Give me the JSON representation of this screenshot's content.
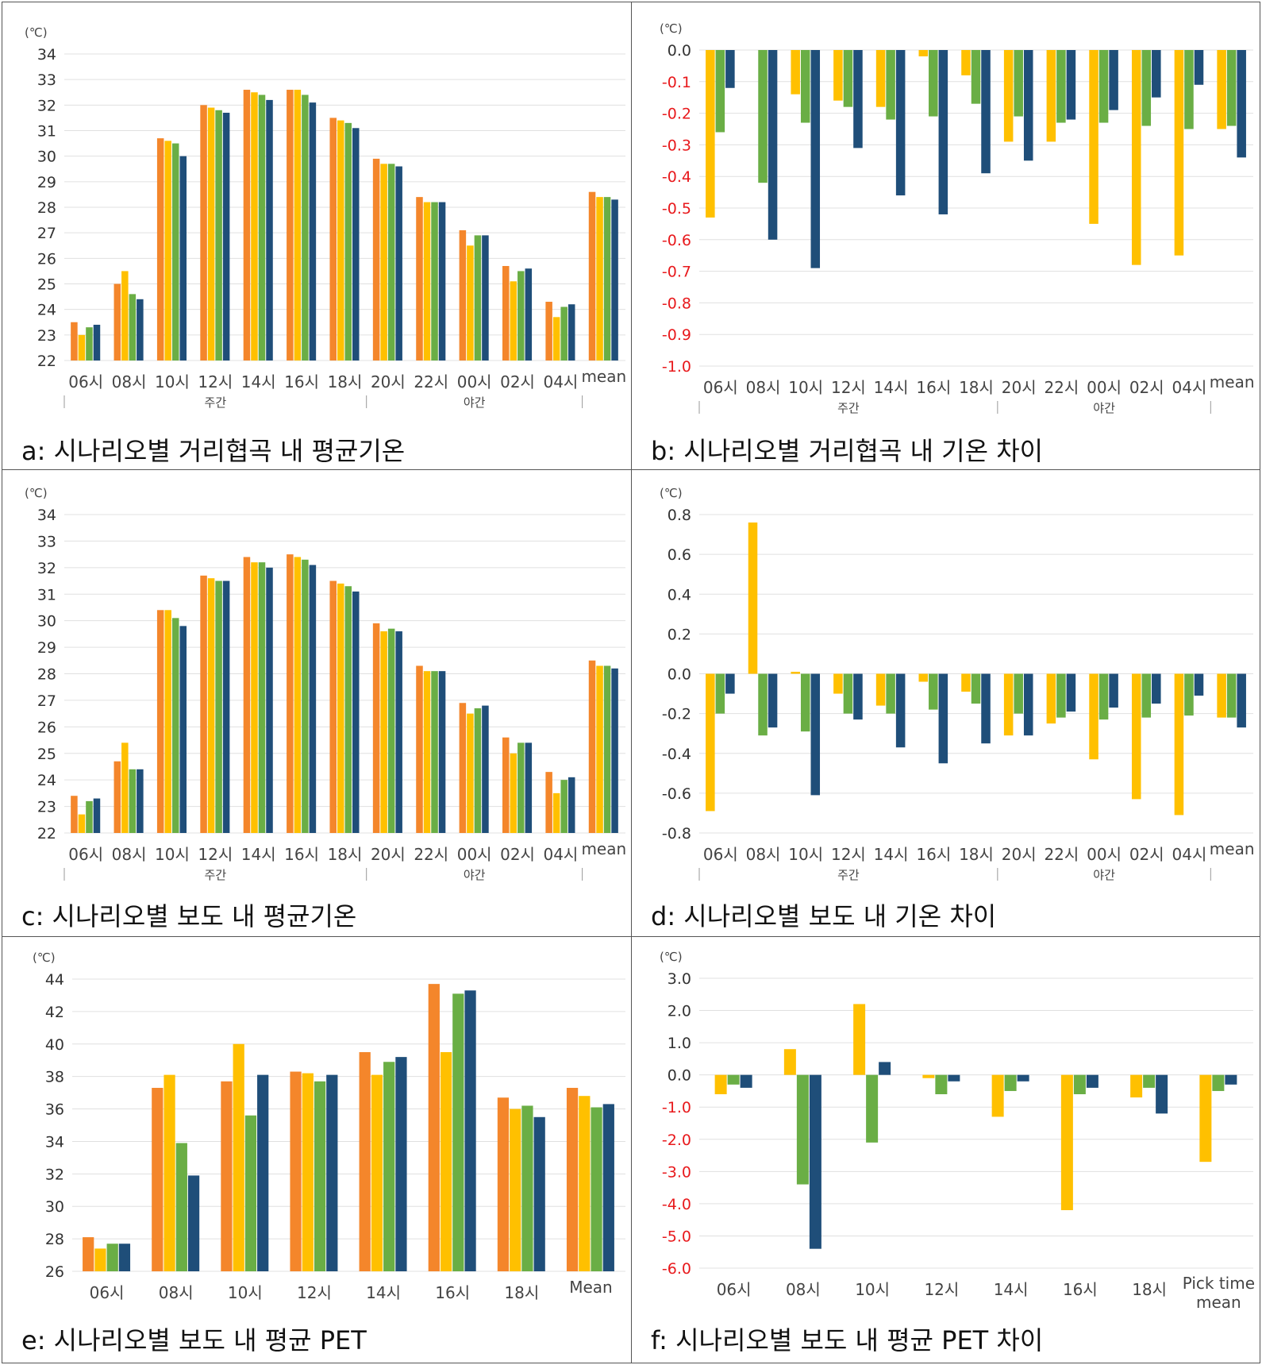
{
  "colors": {
    "s1": "#F4862B",
    "s2": "#FFC000",
    "s3": "#6AAE45",
    "s4": "#1F4E79",
    "grid": "#E0E0E0",
    "neg_tick": "#E8191C"
  },
  "chart_data": [
    {
      "id": "a",
      "type": "bar",
      "caption": "a: 시나리오별 거리협곡 내 평균기온",
      "unit": "(℃)",
      "categories": [
        "06시",
        "08시",
        "10시",
        "12시",
        "14시",
        "16시",
        "18시",
        "20시",
        "22시",
        "00시",
        "02시",
        "04시",
        "mean"
      ],
      "groups": [
        {
          "label": "주간",
          "from": 0,
          "to": 6
        },
        {
          "label": "야간",
          "from": 7,
          "to": 11
        }
      ],
      "ylim": [
        22,
        34
      ],
      "ystep": 1,
      "tick_decimals": 0,
      "neg_red": false,
      "series": [
        {
          "name": "s1",
          "color": "#F4862B",
          "values": [
            23.5,
            25.0,
            30.7,
            32.0,
            32.6,
            32.6,
            31.5,
            29.9,
            28.4,
            27.1,
            25.7,
            24.3,
            28.6
          ]
        },
        {
          "name": "s2",
          "color": "#FFC000",
          "values": [
            23.0,
            25.5,
            30.6,
            31.9,
            32.5,
            32.6,
            31.4,
            29.7,
            28.2,
            26.5,
            25.1,
            23.7,
            28.4
          ]
        },
        {
          "name": "s3",
          "color": "#6AAE45",
          "values": [
            23.3,
            24.6,
            30.5,
            31.8,
            32.4,
            32.4,
            31.3,
            29.7,
            28.2,
            26.9,
            25.5,
            24.1,
            28.4
          ]
        },
        {
          "name": "s4",
          "color": "#1F4E79",
          "values": [
            23.4,
            24.4,
            30.0,
            31.7,
            32.2,
            32.1,
            31.1,
            29.6,
            28.2,
            26.9,
            25.6,
            24.2,
            28.3
          ]
        }
      ]
    },
    {
      "id": "b",
      "type": "bar",
      "caption": "b: 시나리오별 거리협곡 내 기온 차이",
      "unit": "(℃)",
      "categories": [
        "06시",
        "08시",
        "10시",
        "12시",
        "14시",
        "16시",
        "18시",
        "20시",
        "22시",
        "00시",
        "02시",
        "04시",
        "mean"
      ],
      "groups": [
        {
          "label": "주간",
          "from": 0,
          "to": 6
        },
        {
          "label": "야간",
          "from": 7,
          "to": 11
        }
      ],
      "ylim": [
        -1.0,
        0.0
      ],
      "ystep": 0.1,
      "tick_decimals": 1,
      "neg_red": true,
      "series": [
        {
          "name": "s2",
          "color": "#FFC000",
          "values": [
            -0.53,
            0.0,
            -0.14,
            -0.16,
            -0.18,
            -0.02,
            -0.08,
            -0.29,
            -0.29,
            -0.55,
            -0.68,
            -0.65,
            -0.25
          ]
        },
        {
          "name": "s3",
          "color": "#6AAE45",
          "values": [
            -0.26,
            -0.42,
            -0.23,
            -0.18,
            -0.22,
            -0.21,
            -0.17,
            -0.21,
            -0.23,
            -0.23,
            -0.24,
            -0.25,
            -0.24
          ]
        },
        {
          "name": "s4",
          "color": "#1F4E79",
          "values": [
            -0.12,
            -0.6,
            -0.69,
            -0.31,
            -0.46,
            -0.52,
            -0.39,
            -0.35,
            -0.22,
            -0.19,
            -0.15,
            -0.11,
            -0.34
          ]
        }
      ]
    },
    {
      "id": "c",
      "type": "bar",
      "caption": "c: 시나리오별 보도 내 평균기온",
      "unit": "(℃)",
      "categories": [
        "06시",
        "08시",
        "10시",
        "12시",
        "14시",
        "16시",
        "18시",
        "20시",
        "22시",
        "00시",
        "02시",
        "04시",
        "mean"
      ],
      "groups": [
        {
          "label": "주간",
          "from": 0,
          "to": 6
        },
        {
          "label": "야간",
          "from": 7,
          "to": 11
        }
      ],
      "ylim": [
        22,
        34
      ],
      "ystep": 1,
      "tick_decimals": 0,
      "neg_red": false,
      "series": [
        {
          "name": "s1",
          "color": "#F4862B",
          "values": [
            23.4,
            24.7,
            30.4,
            31.7,
            32.4,
            32.5,
            31.5,
            29.9,
            28.3,
            26.9,
            25.6,
            24.3,
            28.5
          ]
        },
        {
          "name": "s2",
          "color": "#FFC000",
          "values": [
            22.7,
            25.4,
            30.4,
            31.6,
            32.2,
            32.4,
            31.4,
            29.6,
            28.1,
            26.5,
            25.0,
            23.5,
            28.3
          ]
        },
        {
          "name": "s3",
          "color": "#6AAE45",
          "values": [
            23.2,
            24.4,
            30.1,
            31.5,
            32.2,
            32.3,
            31.3,
            29.7,
            28.1,
            26.7,
            25.4,
            24.0,
            28.3
          ]
        },
        {
          "name": "s4",
          "color": "#1F4E79",
          "values": [
            23.3,
            24.4,
            29.8,
            31.5,
            32.0,
            32.1,
            31.1,
            29.6,
            28.1,
            26.8,
            25.4,
            24.1,
            28.2
          ]
        }
      ]
    },
    {
      "id": "d",
      "type": "bar",
      "caption": "d: 시나리오별 보도 내 기온 차이",
      "unit": "(℃)",
      "categories": [
        "06시",
        "08시",
        "10시",
        "12시",
        "14시",
        "16시",
        "18시",
        "20시",
        "22시",
        "00시",
        "02시",
        "04시",
        "mean"
      ],
      "groups": [
        {
          "label": "주간",
          "from": 0,
          "to": 6
        },
        {
          "label": "야간",
          "from": 7,
          "to": 11
        }
      ],
      "ylim": [
        -0.8,
        0.8
      ],
      "ystep": 0.2,
      "tick_decimals": 1,
      "neg_red": false,
      "series": [
        {
          "name": "s2",
          "color": "#FFC000",
          "values": [
            -0.69,
            0.76,
            0.01,
            -0.1,
            -0.16,
            -0.04,
            -0.09,
            -0.31,
            -0.25,
            -0.43,
            -0.63,
            -0.71,
            -0.22
          ]
        },
        {
          "name": "s3",
          "color": "#6AAE45",
          "values": [
            -0.2,
            -0.31,
            -0.29,
            -0.2,
            -0.2,
            -0.18,
            -0.15,
            -0.2,
            -0.22,
            -0.23,
            -0.22,
            -0.21,
            -0.22
          ]
        },
        {
          "name": "s4",
          "color": "#1F4E79",
          "values": [
            -0.1,
            -0.27,
            -0.61,
            -0.23,
            -0.37,
            -0.45,
            -0.35,
            -0.31,
            -0.19,
            -0.17,
            -0.15,
            -0.11,
            -0.27
          ]
        }
      ]
    },
    {
      "id": "e",
      "type": "bar",
      "caption": "e: 시나리오별 보도 내 평균 PET",
      "unit": "(℃)",
      "categories": [
        "06시",
        "08시",
        "10시",
        "12시",
        "14시",
        "16시",
        "18시",
        "Mean"
      ],
      "groups": [],
      "ylim": [
        26,
        44
      ],
      "ystep": 2,
      "tick_decimals": 0,
      "neg_red": false,
      "series": [
        {
          "name": "s1",
          "color": "#F4862B",
          "values": [
            28.1,
            37.3,
            37.7,
            38.3,
            39.5,
            43.7,
            36.7,
            37.3
          ]
        },
        {
          "name": "s2",
          "color": "#FFC000",
          "values": [
            27.4,
            38.1,
            40.0,
            38.2,
            38.1,
            39.5,
            36.0,
            36.8
          ]
        },
        {
          "name": "s3",
          "color": "#6AAE45",
          "values": [
            27.7,
            33.9,
            35.6,
            37.7,
            38.9,
            43.1,
            36.2,
            36.1
          ]
        },
        {
          "name": "s4",
          "color": "#1F4E79",
          "values": [
            27.7,
            31.9,
            38.1,
            38.1,
            39.2,
            43.3,
            35.5,
            36.3
          ]
        }
      ]
    },
    {
      "id": "f",
      "type": "bar",
      "caption": "f: 시나리오별 보도 내 평균 PET 차이",
      "unit": "(℃)",
      "categories": [
        "06시",
        "08시",
        "10시",
        "12시",
        "14시",
        "16시",
        "18시",
        "Pick time mean"
      ],
      "groups": [],
      "ylim": [
        -6.0,
        3.0
      ],
      "ystep": 1.0,
      "tick_decimals": 1,
      "neg_red": true,
      "series": [
        {
          "name": "s2",
          "color": "#FFC000",
          "values": [
            -0.6,
            0.8,
            2.2,
            -0.1,
            -1.3,
            -4.2,
            -0.7,
            -2.7
          ]
        },
        {
          "name": "s3",
          "color": "#6AAE45",
          "values": [
            -0.3,
            -3.4,
            -2.1,
            -0.6,
            -0.5,
            -0.6,
            -0.4,
            -0.5
          ]
        },
        {
          "name": "s4",
          "color": "#1F4E79",
          "values": [
            -0.4,
            -5.4,
            0.4,
            -0.2,
            -0.2,
            -0.4,
            -1.2,
            -0.3
          ]
        }
      ]
    }
  ]
}
